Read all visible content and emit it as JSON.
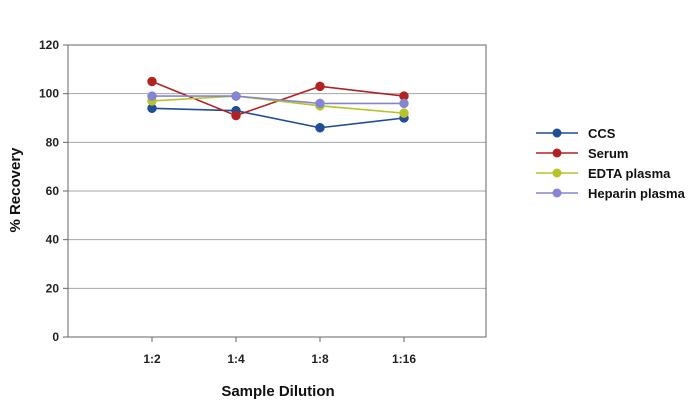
{
  "chart_data": {
    "type": "line",
    "categories": [
      "1:2",
      "1:4",
      "1:8",
      "1:16"
    ],
    "xlabel": "Sample Dilution",
    "ylabel": "% Recovery",
    "ylim": [
      0,
      120
    ],
    "yticks": [
      0,
      20,
      40,
      60,
      80,
      100,
      120
    ],
    "grid": true,
    "legend_position": "right",
    "series": [
      {
        "name": "CCS",
        "values": [
          94,
          93,
          86,
          90
        ],
        "color": "#1f4e96"
      },
      {
        "name": "Serum",
        "values": [
          105,
          91,
          103,
          99
        ],
        "color": "#b22222"
      },
      {
        "name": "EDTA plasma",
        "values": [
          97,
          99,
          95,
          92
        ],
        "color": "#b7c327"
      },
      {
        "name": "Heparin plasma",
        "values": [
          99,
          99,
          96,
          96
        ],
        "color": "#8585d1"
      }
    ]
  },
  "style": {
    "plot_border_color": "#666666",
    "gridline_color": "#a6a6a6"
  }
}
